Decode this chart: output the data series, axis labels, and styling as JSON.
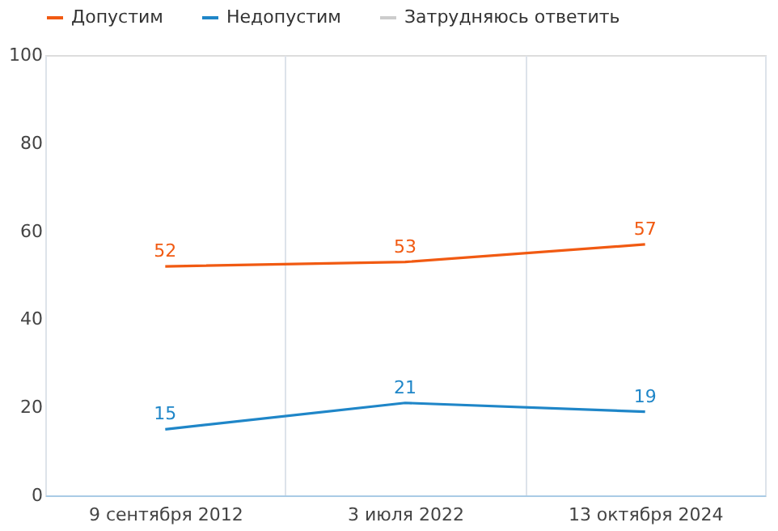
{
  "chart_data": {
    "type": "line",
    "categories": [
      "9 сентября 2012",
      "3 июля 2022",
      "13 октября 2024"
    ],
    "series": [
      {
        "name": "Допустим",
        "color": "#f15a12",
        "values": [
          52,
          53,
          57
        ]
      },
      {
        "name": "Недопустим",
        "color": "#1f86c8",
        "values": [
          15,
          21,
          19
        ]
      },
      {
        "name": "Затрудняюсь ответить",
        "color": "#cccccc",
        "values": [
          null,
          null,
          null
        ]
      }
    ],
    "ylim": [
      0,
      100
    ],
    "yticks": [
      0,
      20,
      40,
      60,
      80,
      100
    ],
    "grid": "x",
    "legend": "top",
    "data_labels": true,
    "marker": "none",
    "line_style": "solid"
  }
}
